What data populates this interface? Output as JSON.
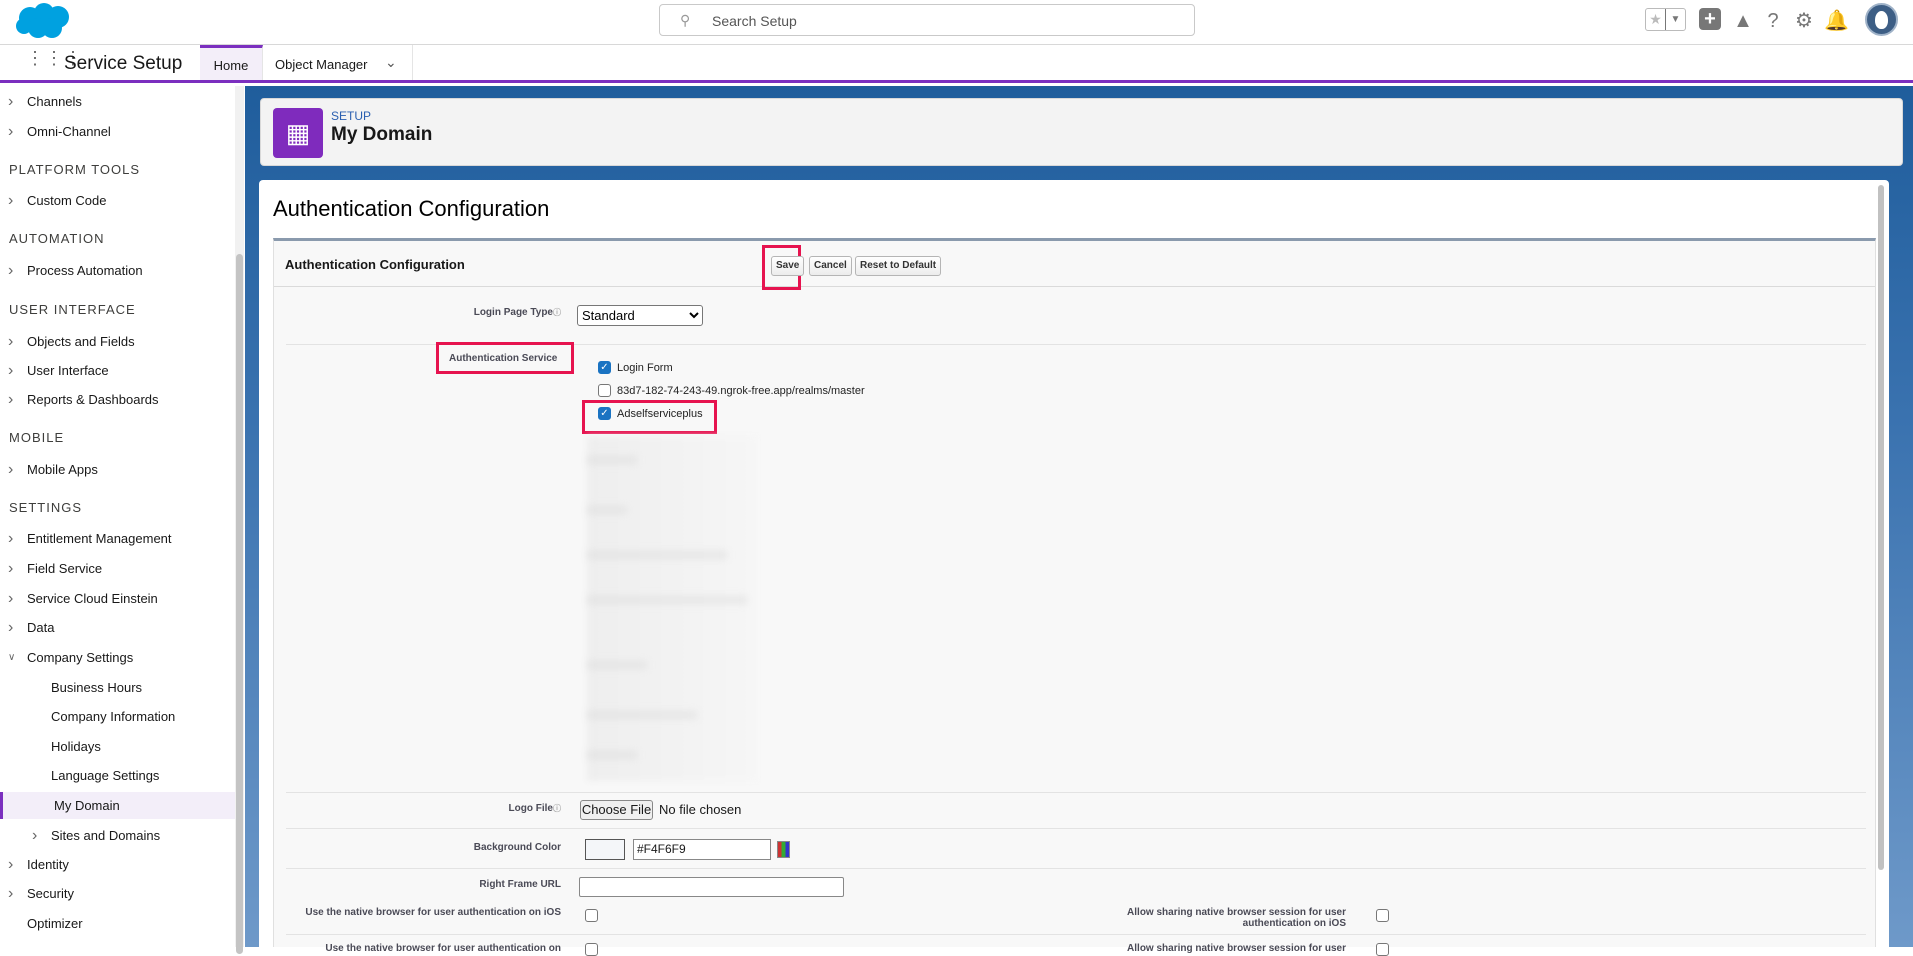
{
  "header": {
    "search_placeholder": "Search Setup",
    "icons": [
      "salesforce-logo",
      "search-icon",
      "favorites-star-icon",
      "add-icon",
      "trailhead-icon",
      "help-icon",
      "gear-icon",
      "bell-icon",
      "avatar"
    ]
  },
  "nav": {
    "app_name": "Service Setup",
    "tabs": [
      {
        "label": "Home",
        "active": true
      },
      {
        "label": "Object Manager"
      }
    ]
  },
  "sidebar": {
    "items": [
      {
        "label": "Channels",
        "type": "item"
      },
      {
        "label": "Omni-Channel",
        "type": "item"
      },
      {
        "label": "PLATFORM TOOLS",
        "type": "heading"
      },
      {
        "label": "Custom Code",
        "type": "item"
      },
      {
        "label": "AUTOMATION",
        "type": "heading"
      },
      {
        "label": "Process Automation",
        "type": "item"
      },
      {
        "label": "USER INTERFACE",
        "type": "heading"
      },
      {
        "label": "Objects and Fields",
        "type": "item"
      },
      {
        "label": "User Interface",
        "type": "item"
      },
      {
        "label": "Reports & Dashboards",
        "type": "item"
      },
      {
        "label": "MOBILE",
        "type": "heading"
      },
      {
        "label": "Mobile Apps",
        "type": "item"
      },
      {
        "label": "SETTINGS",
        "type": "heading"
      },
      {
        "label": "Entitlement Management",
        "type": "item"
      },
      {
        "label": "Field Service",
        "type": "item"
      },
      {
        "label": "Service Cloud Einstein",
        "type": "item"
      },
      {
        "label": "Data",
        "type": "item"
      },
      {
        "label": "Company Settings",
        "type": "item",
        "expanded": true
      },
      {
        "label": "Business Hours",
        "type": "sub"
      },
      {
        "label": "Company Information",
        "type": "sub"
      },
      {
        "label": "Holidays",
        "type": "sub"
      },
      {
        "label": "Language Settings",
        "type": "sub"
      },
      {
        "label": "My Domain",
        "type": "sub",
        "selected": true
      },
      {
        "label": "Sites and Domains",
        "type": "subchev"
      },
      {
        "label": "Identity",
        "type": "item"
      },
      {
        "label": "Security",
        "type": "item"
      },
      {
        "label": "Optimizer",
        "type": "plain"
      }
    ]
  },
  "page_header": {
    "eyebrow": "SETUP",
    "title": "My Domain"
  },
  "main": {
    "title": "Authentication Configuration",
    "section_title": "Authentication Configuration",
    "buttons": {
      "save": "Save",
      "cancel": "Cancel",
      "reset": "Reset to Default"
    },
    "login_page_type": {
      "label": "Login Page Type",
      "value": "Standard"
    },
    "auth_service": {
      "label": "Authentication Service",
      "options": [
        {
          "label": "Login Form",
          "checked": true
        },
        {
          "label": "83d7-182-74-243-49.ngrok-free.app/realms/master",
          "checked": false
        },
        {
          "label": "Adselfserviceplus",
          "checked": true
        }
      ]
    },
    "logo_file": {
      "label": "Logo File",
      "button": "Choose File",
      "status": "No file chosen"
    },
    "background_color": {
      "label": "Background Color",
      "value": "#F4F6F9"
    },
    "right_frame_url": {
      "label": "Right Frame URL",
      "value": ""
    },
    "native_ios": {
      "label": "Use the native browser for user authentication on iOS",
      "checked": false
    },
    "share_ios": {
      "label": "Allow sharing native browser session for user authentication on iOS",
      "checked": false
    },
    "native_next": {
      "label": "Use the native browser for user authentication on",
      "checked": false
    },
    "share_next": {
      "label": "Allow sharing native browser session for user",
      "checked": false
    }
  },
  "colors": {
    "accent": "#7B2FBF",
    "highlight": "#E6134F",
    "brand": "#00A1E0"
  }
}
